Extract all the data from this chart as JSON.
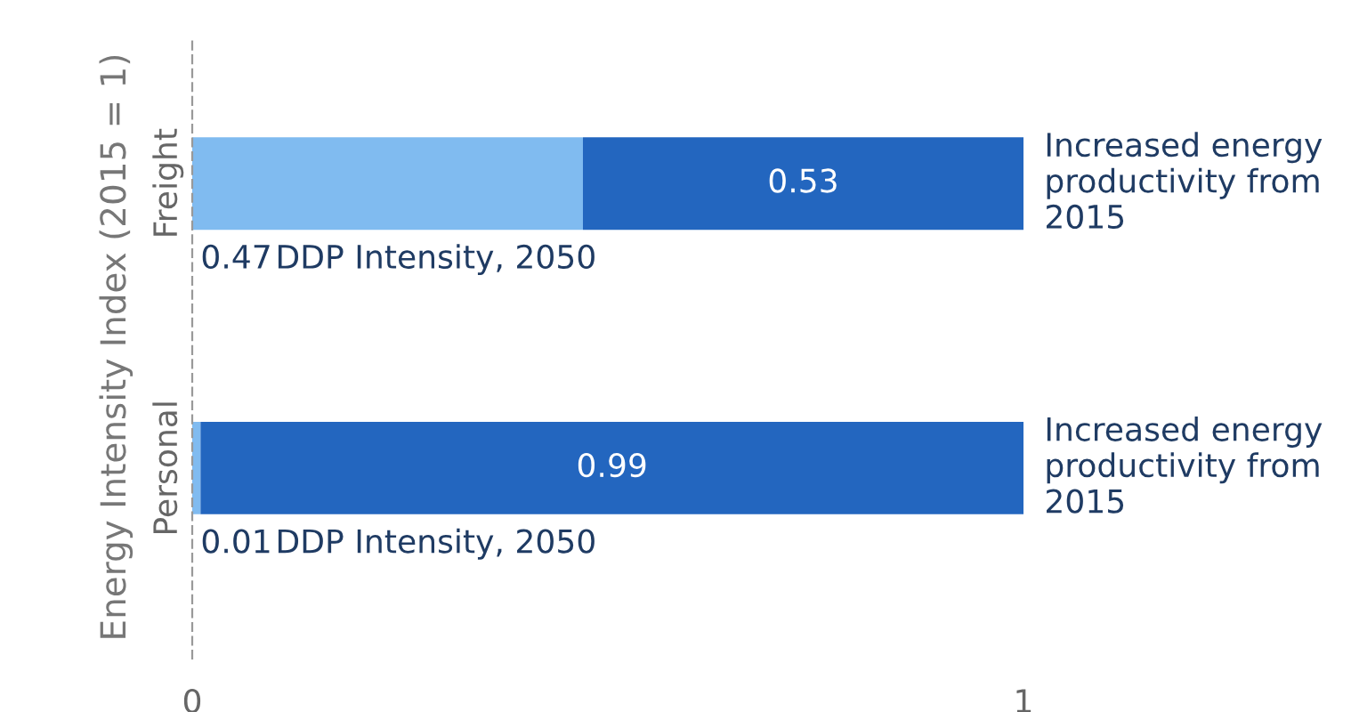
{
  "chart_data": {
    "type": "bar",
    "orientation": "horizontal",
    "stacked": true,
    "ylabel": "Energy Intensity Index (2015 = 1)",
    "categories": [
      "Freight",
      "Personal"
    ],
    "series": [
      {
        "name": "DDP Intensity, 2050",
        "color": "#80bbf0",
        "values": [
          0.47,
          0.01
        ],
        "value_labels": [
          "0.47",
          "0.01"
        ]
      },
      {
        "name": "Increased energy productivity from 2015",
        "color": "#2366bf",
        "values": [
          0.53,
          0.99
        ],
        "value_labels": [
          "0.53",
          "0.99"
        ]
      }
    ],
    "xlim": [
      0,
      1
    ],
    "xticks": [
      0,
      1
    ],
    "grid": false,
    "legend": false
  }
}
